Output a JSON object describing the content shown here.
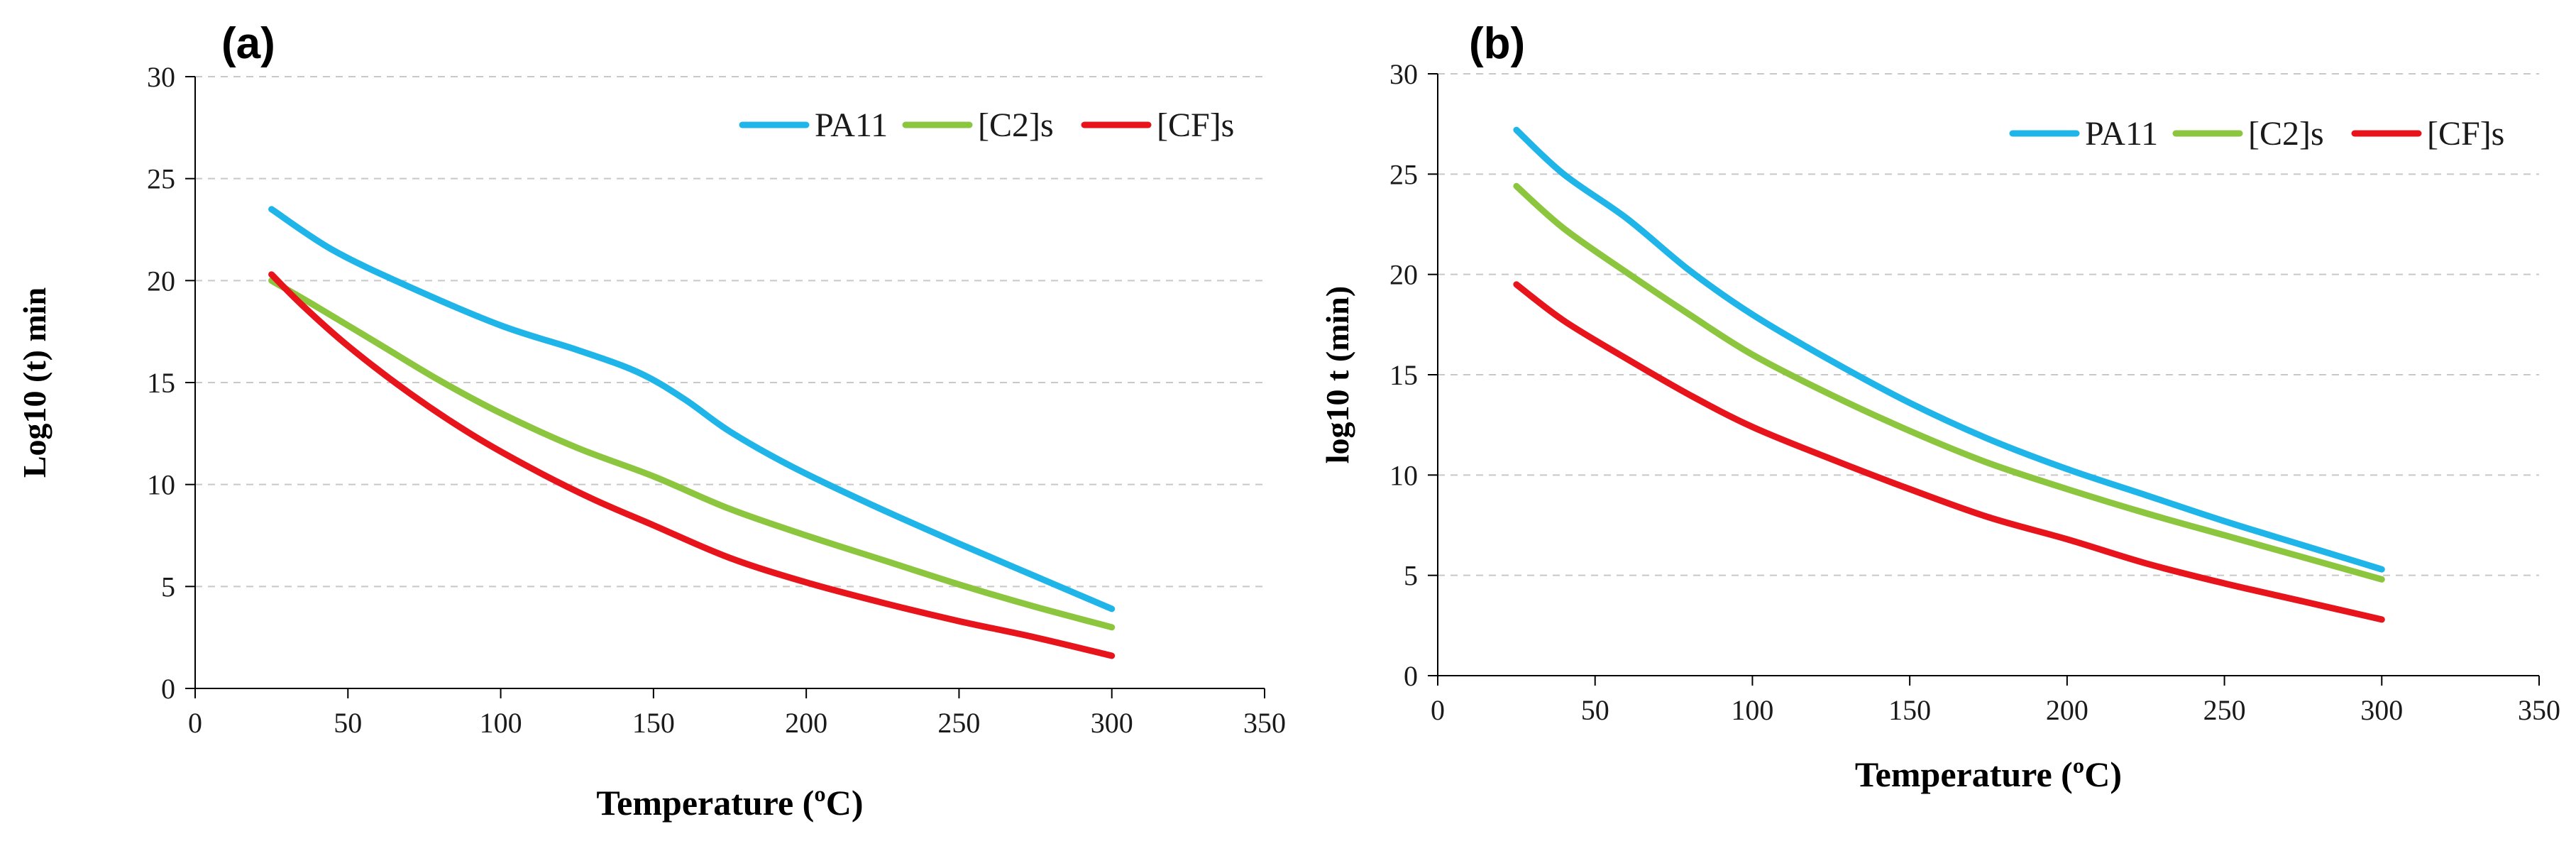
{
  "chart_data": [
    {
      "type": "line",
      "panel_label": "(a)",
      "xlabel": "Temperature  (ºC)",
      "ylabel": "Log10 (t) min",
      "xlim": [
        0,
        350
      ],
      "ylim": [
        0,
        30
      ],
      "xticks": [
        0,
        50,
        100,
        150,
        200,
        250,
        300,
        350
      ],
      "yticks": [
        0,
        5,
        10,
        15,
        20,
        25,
        30
      ],
      "grid": "horizontal-dashed",
      "legend_position": "top-right",
      "series": [
        {
          "name": "PA11",
          "color": "#1fb5e8",
          "x": [
            25,
            45,
            70,
            100,
            125,
            145,
            160,
            175,
            195,
            220,
            250,
            275,
            300
          ],
          "y": [
            23.5,
            21.5,
            19.7,
            17.8,
            16.6,
            15.5,
            14.2,
            12.6,
            10.9,
            9.1,
            7.1,
            5.5,
            3.9
          ]
        },
        {
          "name": "[C2]s",
          "color": "#8cc63f",
          "x": [
            25,
            40,
            60,
            80,
            100,
            125,
            150,
            175,
            200,
            225,
            250,
            275,
            300
          ],
          "y": [
            20.0,
            18.7,
            16.9,
            15.1,
            13.5,
            11.8,
            10.4,
            8.8,
            7.5,
            6.3,
            5.1,
            4.0,
            3.0
          ]
        },
        {
          "name": "[CF]s",
          "color": "#e8141c",
          "x": [
            25,
            35,
            50,
            70,
            90,
            110,
            130,
            150,
            175,
            200,
            225,
            250,
            275,
            300
          ],
          "y": [
            20.3,
            18.8,
            16.8,
            14.5,
            12.5,
            10.8,
            9.3,
            8.0,
            6.4,
            5.2,
            4.2,
            3.3,
            2.5,
            1.6
          ]
        }
      ]
    },
    {
      "type": "line",
      "panel_label": "(b)",
      "xlabel": "Temperature  (ºC)",
      "ylabel": "log10 t (min)",
      "xlim": [
        0,
        350
      ],
      "ylim": [
        0,
        30
      ],
      "xticks": [
        0,
        50,
        100,
        150,
        200,
        250,
        300,
        350
      ],
      "yticks": [
        0,
        5,
        10,
        15,
        20,
        25,
        30
      ],
      "grid": "horizontal-dashed",
      "legend_position": "top-right",
      "series": [
        {
          "name": "PA11",
          "color": "#1fb5e8",
          "x": [
            25,
            40,
            60,
            80,
            100,
            125,
            150,
            175,
            200,
            225,
            250,
            275,
            300
          ],
          "y": [
            27.2,
            25.0,
            22.8,
            20.2,
            18.0,
            15.7,
            13.6,
            11.8,
            10.3,
            9.0,
            7.7,
            6.5,
            5.3
          ]
        },
        {
          "name": "[C2]s",
          "color": "#8cc63f",
          "x": [
            25,
            40,
            60,
            80,
            100,
            125,
            150,
            175,
            200,
            225,
            250,
            275,
            300
          ],
          "y": [
            24.4,
            22.3,
            20.1,
            18.0,
            16.0,
            14.0,
            12.2,
            10.6,
            9.3,
            8.1,
            7.0,
            5.9,
            4.8
          ]
        },
        {
          "name": "[CF]s",
          "color": "#e8141c",
          "x": [
            25,
            40,
            60,
            80,
            100,
            125,
            150,
            175,
            200,
            225,
            250,
            275,
            300
          ],
          "y": [
            19.5,
            17.7,
            15.8,
            14.0,
            12.4,
            10.8,
            9.3,
            7.9,
            6.8,
            5.6,
            4.6,
            3.7,
            2.8
          ]
        }
      ]
    }
  ]
}
